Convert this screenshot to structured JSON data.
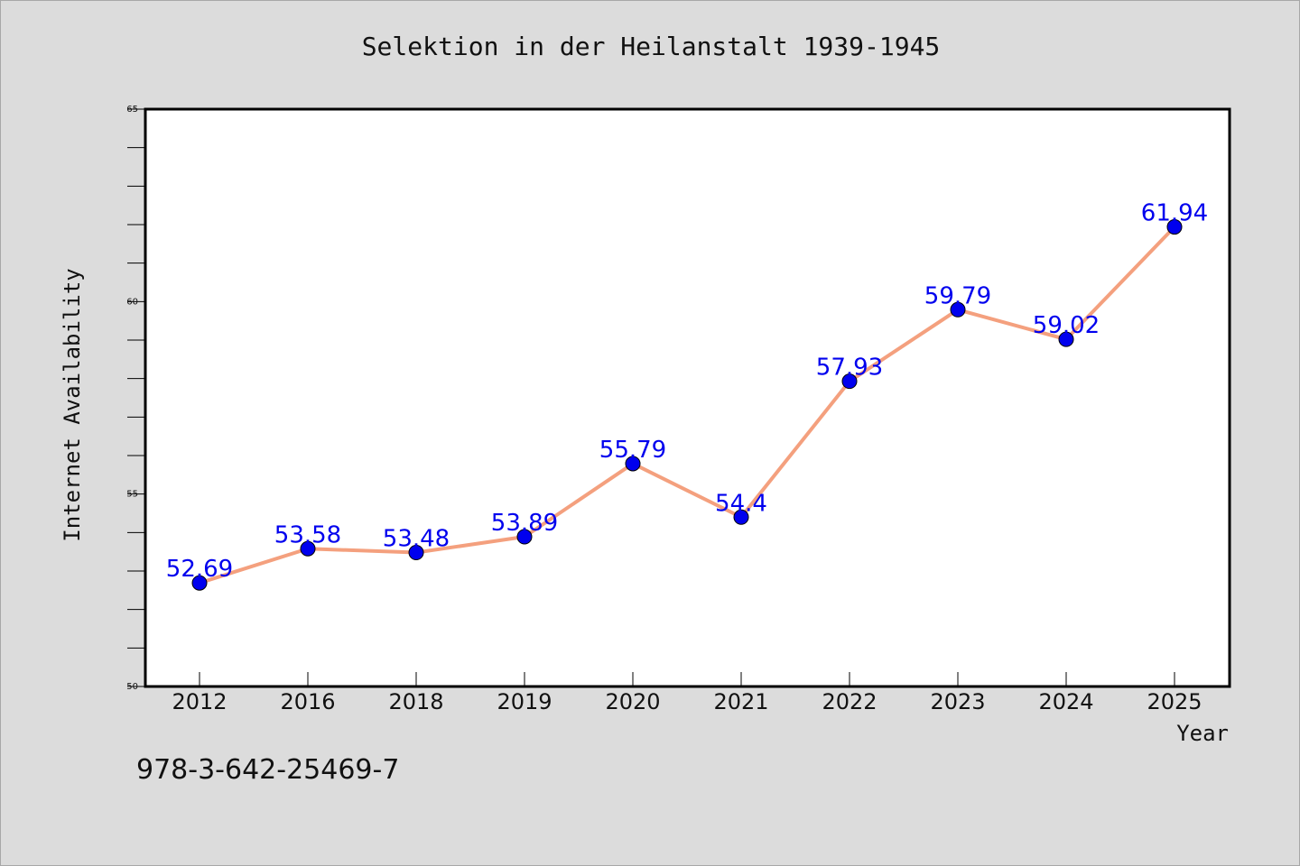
{
  "chart_data": {
    "type": "line",
    "title": "Selektion in der Heilanstalt 1939-1945",
    "xlabel": "Year",
    "ylabel": "Internet Availability",
    "categories": [
      "2012",
      "2016",
      "2018",
      "2019",
      "2020",
      "2021",
      "2022",
      "2023",
      "2024",
      "2025"
    ],
    "series": [
      {
        "values": [
          52.69,
          53.58,
          53.48,
          53.89,
          55.79,
          54.4,
          57.93,
          59.79,
          59.02,
          61.94
        ],
        "data_labels": [
          "52.69",
          "53.58",
          "53.48",
          "53.89",
          "55.79",
          "54.4",
          "57.93",
          "59.79",
          "59.02",
          "61.94"
        ]
      }
    ],
    "ylim": [
      50,
      65
    ],
    "yticks": [
      "50",
      "55",
      "60",
      "65"
    ],
    "y_minor_step": 1,
    "grid": false,
    "legend": "none",
    "line_color": "#f4a07e",
    "marker_color": "#0000ee",
    "label_color": "#0000ee"
  },
  "footnote": "978-3-642-25469-7"
}
